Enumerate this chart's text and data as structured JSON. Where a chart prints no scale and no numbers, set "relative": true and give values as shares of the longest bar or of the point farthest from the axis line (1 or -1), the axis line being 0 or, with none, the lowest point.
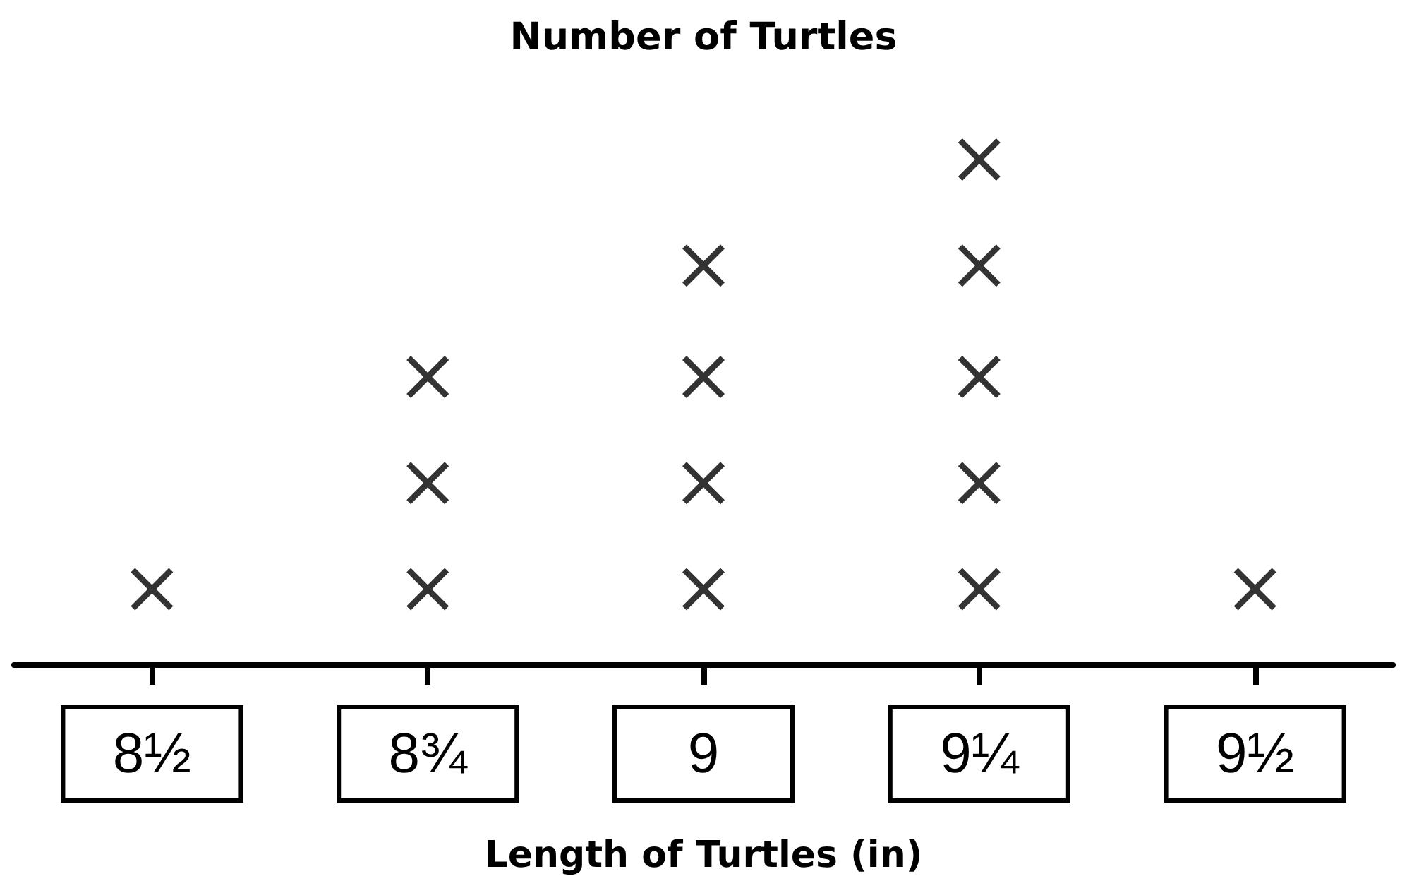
{
  "chart_data": {
    "type": "scatter",
    "title": "Number of Turtles",
    "xlabel": "Length of Turtles (in)",
    "categories": [
      "8½",
      "8¾",
      "9",
      "9¼",
      "9½"
    ],
    "series": [
      {
        "color": "#000000",
        "x": [
          "8½",
          "8¾",
          "8¾",
          "8¾",
          "9",
          "9",
          "9",
          "9",
          "9¼",
          "9¼",
          "9¼",
          "9¼",
          "9¼",
          "9½"
        ],
        "values": [
          0.15,
          0.15,
          0.36,
          0.57,
          0.15,
          0.36,
          0.57,
          0.79,
          0.15,
          0.36,
          0.57,
          0.79,
          1.0,
          0.15
        ]
      }
    ],
    "relative": true,
    "marker": "cross",
    "grid": false,
    "tick_labels": "x"
  }
}
